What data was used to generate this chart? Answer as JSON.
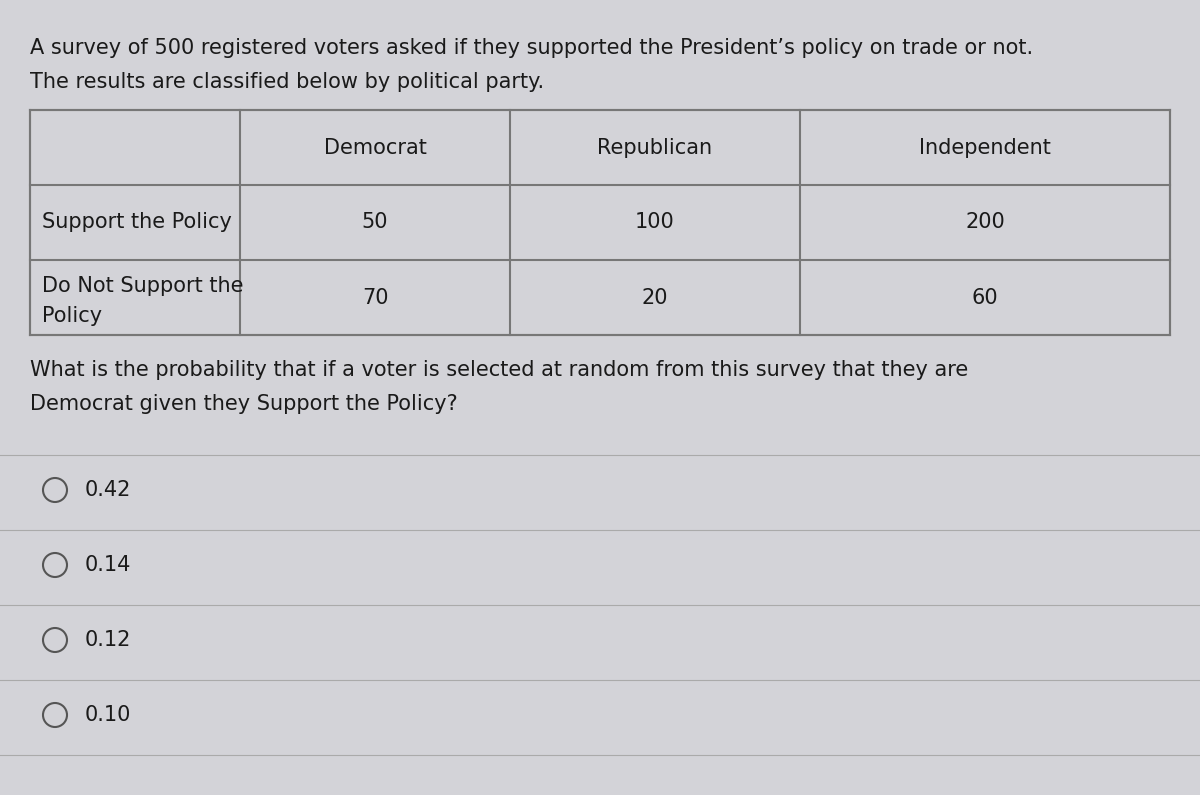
{
  "intro_line1": "A survey of 500 registered voters asked if they supported the President’s policy on trade or not.",
  "intro_line2": "The results are classified below by political party.",
  "col_headers": [
    "",
    "Democrat",
    "Republican",
    "Independent"
  ],
  "row1_label": "Support the Policy",
  "row1_values": [
    "50",
    "100",
    "200"
  ],
  "row2_label_line1": "Do Not Support the",
  "row2_label_line2": "Policy",
  "row2_values": [
    "70",
    "20",
    "60"
  ],
  "question_line1": "What is the probability that if a voter is selected at random from this survey that they are",
  "question_line2": "Democrat given they Support the Policy?",
  "options": [
    "0.42",
    "0.14",
    "0.12",
    "0.10"
  ],
  "bg_color": "#d3d3d8",
  "text_color": "#1a1a1a",
  "table_border_color": "#777777",
  "sep_line_color": "#aaaaaa",
  "font_size_intro": 15.0,
  "font_size_table_header": 15.0,
  "font_size_table_data": 15.0,
  "font_size_question": 15.0,
  "font_size_options": 15.0,
  "fig_width": 12.0,
  "fig_height": 7.95,
  "dpi": 100
}
